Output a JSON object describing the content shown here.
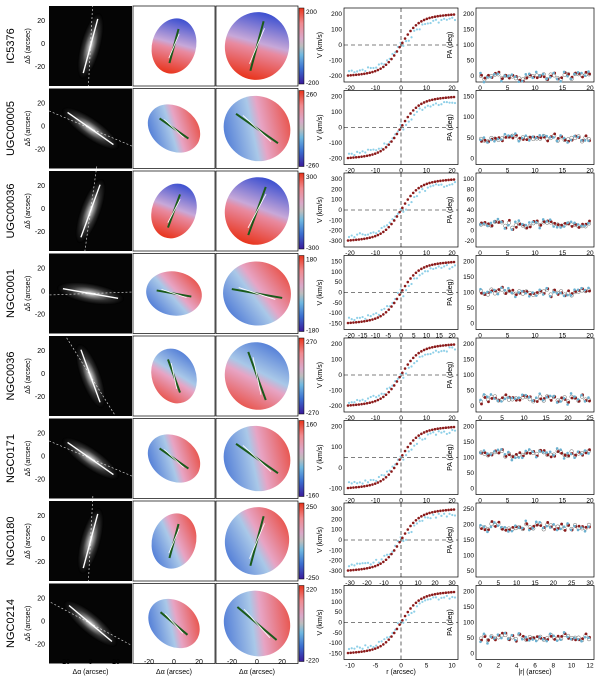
{
  "figure": {
    "colors": {
      "red": "#8b1a1a",
      "light_blue": "#8fd0e8",
      "open_gray": "#bfbfbf",
      "pa_blue": "#6ab0d0"
    },
    "image_col_axis_label": "Δα (arcsec)",
    "image_ylabel": "Δδ (arcsec)",
    "image_xticks": [
      "-20",
      "0",
      "20"
    ],
    "image_yticks": [
      "20",
      "0",
      "-20"
    ],
    "rc_xlabel": "r (arcsec)",
    "rc_ylabel": "V (km/s)",
    "pa_xlabel": "|r| (arcsec)",
    "pa_ylabel": "PA (deg)",
    "colorbar_label": "colorbar"
  },
  "rows": [
    {
      "name": "IC5376",
      "cbar_max": "200",
      "cbar_min": "-200",
      "rc_xticks": [
        "-20",
        "-10",
        "0",
        "10",
        "20"
      ],
      "rc_yticks": [
        "200",
        "100",
        "0",
        "-100",
        "-200"
      ],
      "pa_xticks": [
        "0",
        "5",
        "10",
        "15",
        "20"
      ],
      "pa_yticks": [
        "200",
        "150",
        "100",
        "50",
        "0"
      ]
    },
    {
      "name": "UGC00005",
      "cbar_max": "260",
      "cbar_min": "-260",
      "rc_xticks": [
        "-20",
        "-10",
        "0",
        "10",
        "20"
      ],
      "rc_yticks": [
        "200",
        "100",
        "0",
        "-100",
        "-200"
      ],
      "pa_xticks": [
        "0",
        "5",
        "10",
        "15",
        "20"
      ],
      "pa_yticks": [
        "150",
        "100",
        "50",
        "0"
      ]
    },
    {
      "name": "UGC00036",
      "cbar_max": "300",
      "cbar_min": "-300",
      "rc_xticks": [
        "-20",
        "-10",
        "0",
        "10",
        "20"
      ],
      "rc_yticks": [
        "300",
        "200",
        "100",
        "0",
        "-100",
        "-200",
        "-300"
      ],
      "pa_xticks": [
        "0",
        "5",
        "10",
        "15",
        "20"
      ],
      "pa_yticks": [
        "100",
        "80",
        "60",
        "40",
        "20",
        "0",
        "-20"
      ]
    },
    {
      "name": "NGC0001",
      "cbar_max": "180",
      "cbar_min": "-180",
      "rc_xticks": [
        "-20",
        "-15",
        "-10",
        "-5",
        "0",
        "5",
        "10",
        "15",
        "20"
      ],
      "rc_yticks": [
        "150",
        "100",
        "50",
        "0",
        "-50",
        "-100",
        "-150"
      ],
      "pa_xticks": [
        "0",
        "5",
        "10",
        "15",
        "20"
      ],
      "pa_yticks": [
        "200",
        "150",
        "100",
        "50",
        "0"
      ]
    },
    {
      "name": "NGC0036",
      "cbar_max": "270",
      "cbar_min": "-270",
      "rc_xticks": [
        "-20",
        "-10",
        "0",
        "10",
        "20"
      ],
      "rc_yticks": [
        "200",
        "100",
        "0",
        "-100",
        "-200"
      ],
      "pa_xticks": [
        "0",
        "5",
        "10",
        "15",
        "20",
        "25"
      ],
      "pa_yticks": [
        "200",
        "150",
        "100",
        "50",
        "0"
      ]
    },
    {
      "name": "NGC0171",
      "cbar_max": "160",
      "cbar_min": "-160",
      "rc_xticks": [
        "-20",
        "-10",
        "0",
        "10",
        "20"
      ],
      "rc_yticks": [
        "200",
        "100",
        "0",
        "-100"
      ],
      "pa_xticks": [
        "0",
        "5",
        "10",
        "15",
        "20"
      ],
      "pa_yticks": [
        "200",
        "150",
        "100",
        "50",
        "0"
      ]
    },
    {
      "name": "NGC0180",
      "cbar_max": "250",
      "cbar_min": "-250",
      "rc_xticks": [
        "-30",
        "-20",
        "-10",
        "0",
        "10",
        "20",
        "30"
      ],
      "rc_yticks": [
        "300",
        "200",
        "100",
        "0",
        "-100",
        "-200",
        "-300"
      ],
      "pa_xticks": [
        "0",
        "5",
        "10",
        "15",
        "20",
        "25",
        "30"
      ],
      "pa_yticks": [
        "250",
        "200",
        "150",
        "100",
        "50"
      ]
    },
    {
      "name": "NGC0214",
      "cbar_max": "220",
      "cbar_min": "-220",
      "rc_xticks": [
        "-10",
        "-5",
        "0",
        "5",
        "10"
      ],
      "rc_yticks": [
        "150",
        "100",
        "50",
        "0",
        "-50",
        "-100",
        "-150"
      ],
      "pa_xticks": [
        "0",
        "2",
        "4",
        "6",
        "8",
        "10",
        "12"
      ],
      "pa_yticks": [
        "200",
        "150",
        "100",
        "50",
        "0"
      ]
    }
  ]
}
